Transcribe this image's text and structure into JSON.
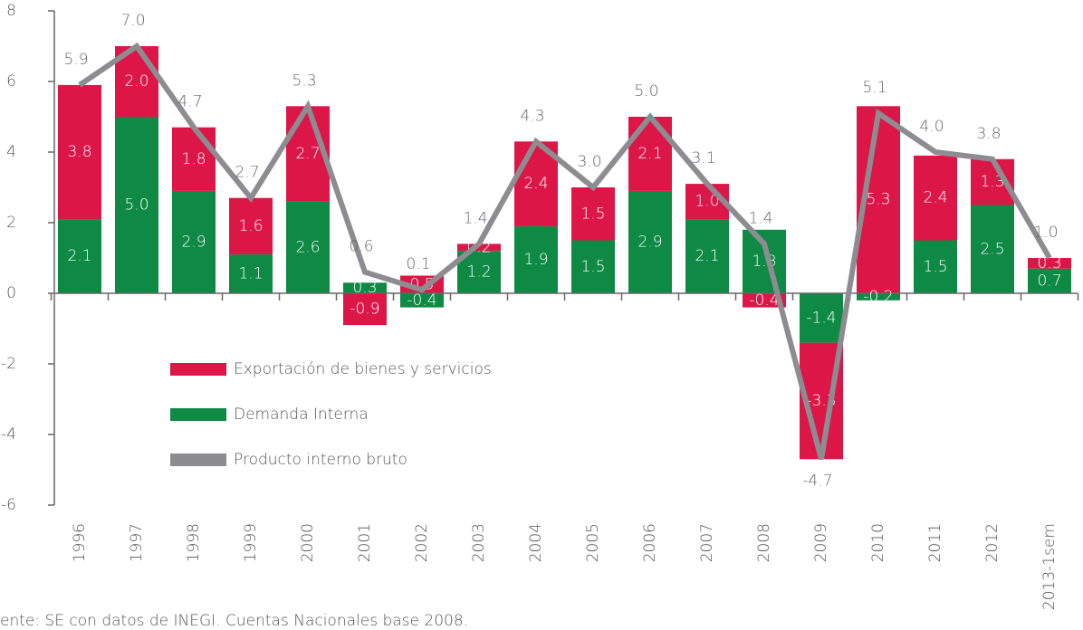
{
  "chart_data": {
    "type": "bar",
    "stacked": true,
    "categories": [
      "1996",
      "1997",
      "1998",
      "1999",
      "2000",
      "2001",
      "2002",
      "2003",
      "2004",
      "2005",
      "2006",
      "2007",
      "2008",
      "2009",
      "2010",
      "2011",
      "2012",
      "2013-1sem"
    ],
    "series": [
      {
        "name": "Demanda Interna",
        "color": "#0e8a44",
        "type": "bar",
        "values": [
          2.1,
          5.0,
          2.9,
          1.1,
          2.6,
          0.3,
          -0.4,
          1.2,
          1.9,
          1.5,
          2.9,
          2.1,
          1.8,
          -1.4,
          -0.2,
          1.5,
          2.5,
          0.7
        ],
        "value_labels": [
          "2.1",
          "5.0",
          "2.9",
          "1.1",
          "2.6",
          "0.3",
          "-0.4",
          "1.2",
          "1.9",
          "1.5",
          "2.9",
          "2.1",
          "1.8",
          "-1.4",
          "-0.2",
          "1.5",
          "2.5",
          "0.7"
        ]
      },
      {
        "name": "Exportación de bienes y servicios",
        "color": "#dc1748",
        "type": "bar",
        "values": [
          3.8,
          2.0,
          1.8,
          1.6,
          2.7,
          -0.9,
          0.5,
          0.2,
          2.4,
          1.5,
          2.1,
          1.0,
          -0.4,
          -3.3,
          5.3,
          2.4,
          1.3,
          0.3
        ],
        "value_labels": [
          "3.8",
          "2.0",
          "1.8",
          "1.6",
          "2.7",
          "-0.9",
          "0.5",
          "0.2",
          "2.4",
          "1.5",
          "2.1",
          "1.0",
          "-0.4",
          "-3.3",
          "5.3",
          "2.4",
          "1.3",
          "0.3"
        ]
      },
      {
        "name": "Producto interno bruto",
        "color": "#8c8c91",
        "type": "line",
        "values": [
          5.9,
          7.0,
          4.7,
          2.7,
          5.3,
          0.6,
          0.1,
          1.4,
          4.3,
          3.0,
          5.0,
          3.1,
          1.4,
          -4.7,
          5.1,
          4.0,
          3.8,
          1.0
        ],
        "value_labels": [
          "5.9",
          "7.0",
          "4.7",
          "2.7",
          "5.3",
          "0.6",
          "0.1",
          "1.4",
          "4.3",
          "3.0",
          "5.0",
          "3.1",
          "1.4",
          "-4.7",
          "5.1",
          "4.0",
          "3.8",
          "1.0"
        ]
      }
    ],
    "ylim": [
      -6,
      8
    ],
    "yticks": [
      -6,
      -4,
      -2,
      0,
      2,
      4,
      6,
      8
    ],
    "legend": "inside-lower-left",
    "source": "ente: SE con datos de INEGI. Cuentas Nacionales base 2008."
  }
}
